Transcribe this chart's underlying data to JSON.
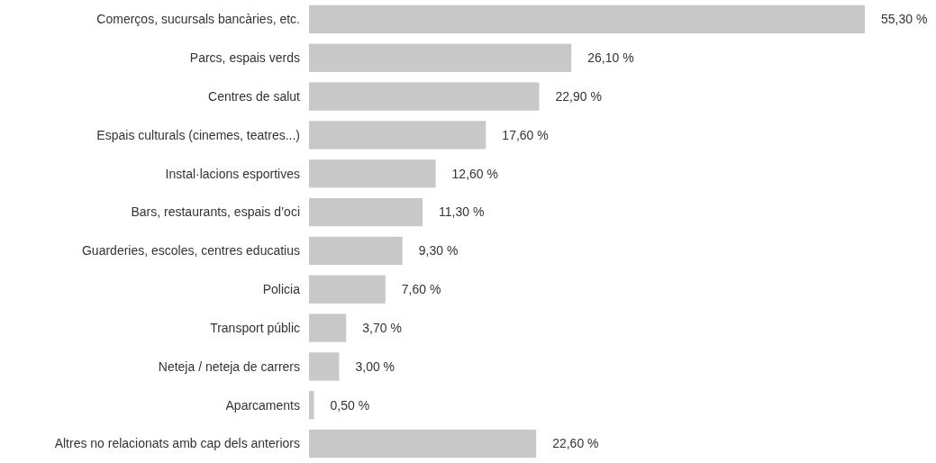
{
  "chart_data": {
    "type": "bar",
    "orientation": "horizontal",
    "categories": [
      "Comerços, sucursals bancàries, etc.",
      "Parcs, espais verds",
      "Centres de salut",
      "Espais culturals (cinemes, teatres...)",
      "Instal·lacions esportives",
      "Bars, restaurants, espais d’oci",
      "Guarderies, escoles, centres educatius",
      "Policia",
      "Transport públic",
      "Neteja / neteja de carrers",
      "Aparcaments",
      "Altres no relacionats amb cap dels anteriors"
    ],
    "values": [
      55.3,
      26.1,
      22.9,
      17.6,
      12.6,
      11.3,
      9.3,
      7.6,
      3.7,
      3.0,
      0.5,
      22.6
    ],
    "value_labels": [
      "55,30 %",
      "26,10 %",
      "22,90 %",
      "17,60 %",
      "12,60 %",
      "11,30 %",
      "9,30 %",
      "7,60 %",
      "3,70 %",
      "3,00 %",
      "0,50 %",
      "22,60 %"
    ],
    "color": "#c8c8c8"
  }
}
